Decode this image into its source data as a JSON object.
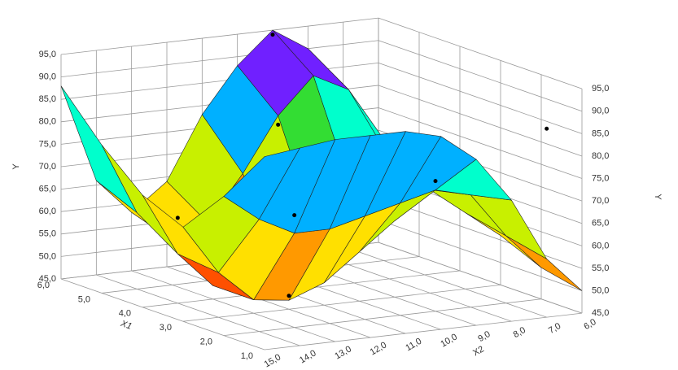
{
  "chart_data": {
    "type": "surface3d",
    "zlabel": "Y",
    "xlabel": "X1",
    "ylabel": "X2",
    "x1": [
      1,
      2,
      3,
      4,
      5,
      6
    ],
    "x2": [
      6,
      7,
      8,
      9,
      10,
      11,
      12,
      13,
      14,
      15
    ],
    "z": [
      [
        50,
        58,
        72,
        82,
        88,
        90,
        90,
        90,
        89,
        88
      ],
      [
        52,
        60,
        70,
        72,
        70,
        68,
        66,
        66,
        70,
        76
      ],
      [
        56,
        62,
        68,
        62,
        56,
        50,
        47,
        48,
        55,
        66
      ],
      [
        60,
        66,
        72,
        64,
        56,
        50,
        47,
        48,
        56,
        70
      ],
      [
        62,
        72,
        84,
        88,
        80,
        68,
        58,
        55,
        62,
        78
      ],
      [
        64,
        74,
        90,
        95,
        88,
        78,
        64,
        58,
        66,
        88
      ]
    ],
    "band_colors": [
      "#ff0000",
      "#ff5000",
      "#ff9900",
      "#ffe000",
      "#c8f000",
      "#33dd33",
      "#00ffcc",
      "#00b0ff",
      "#0040ff",
      "#7020ff",
      "#ff00ff"
    ],
    "points": {
      "x1": [
        3,
        2,
        1,
        4,
        5,
        6,
        2
      ],
      "x2": [
        12,
        9,
        7,
        14,
        10,
        9,
        13
      ],
      "y": [
        48,
        74,
        87,
        64,
        78,
        94,
        70
      ]
    },
    "zlim": [
      45,
      95
    ],
    "zticks": [
      {
        "value": 45,
        "label": "45,0"
      },
      {
        "value": 50,
        "label": "50,0"
      },
      {
        "value": 55,
        "label": "55,0"
      },
      {
        "value": 60,
        "label": "60,0"
      },
      {
        "value": 65,
        "label": "65,0"
      },
      {
        "value": 70,
        "label": "70,0"
      },
      {
        "value": 75,
        "label": "75,0"
      },
      {
        "value": 80,
        "label": "80,0"
      },
      {
        "value": 85,
        "label": "85,0"
      },
      {
        "value": 90,
        "label": "90,0"
      },
      {
        "value": 95,
        "label": "95,0"
      }
    ],
    "xlim": [
      1,
      6
    ],
    "xticks": [
      {
        "value": 1,
        "label": "1,0"
      },
      {
        "value": 2,
        "label": "2,0"
      },
      {
        "value": 3,
        "label": "3,0"
      },
      {
        "value": 4,
        "label": "4,0"
      },
      {
        "value": 5,
        "label": "5,0"
      },
      {
        "value": 6,
        "label": "6,0"
      }
    ],
    "ylim": [
      6,
      15
    ],
    "yticks": [
      {
        "value": 6,
        "label": "6,0"
      },
      {
        "value": 7,
        "label": "7,0"
      },
      {
        "value": 8,
        "label": "8,0"
      },
      {
        "value": 9,
        "label": "9,0"
      },
      {
        "value": 10,
        "label": "10,0"
      },
      {
        "value": 11,
        "label": "11,0"
      },
      {
        "value": 12,
        "label": "12,0"
      },
      {
        "value": 13,
        "label": "13,0"
      },
      {
        "value": 14,
        "label": "14,0"
      },
      {
        "value": 15,
        "label": "15,0"
      }
    ]
  }
}
